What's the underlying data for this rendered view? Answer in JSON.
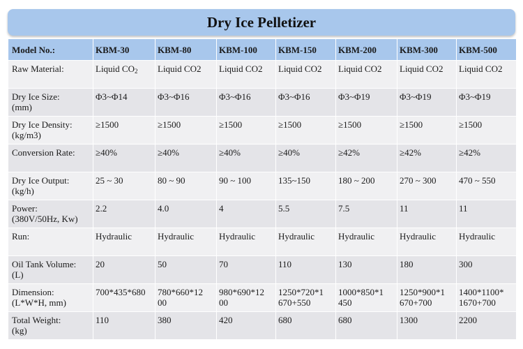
{
  "title": "Dry Ice Pelletizer",
  "table": {
    "header": {
      "label": "Model No.:",
      "models": [
        "KBM-30",
        "KBM-80",
        "KBM-100",
        "KBM-150",
        "KBM-200",
        "KBM-300",
        "KBM-500"
      ]
    },
    "rows": [
      {
        "label": "Raw Material:",
        "values": [
          "Liquid CO",
          "Liquid CO2",
          "Liquid CO2",
          "Liquid CO2",
          "Liquid CO2",
          "Liquid CO2",
          "Liquid CO2"
        ],
        "first_subscript": "2"
      },
      {
        "label": "Dry Ice Size:\n(mm)",
        "values": [
          "Φ3~Φ14",
          "Φ3~Φ16",
          "Φ3~Φ16",
          "Φ3~Φ16",
          "Φ3~Φ19",
          "Φ3~Φ19",
          "Φ3~Φ19"
        ]
      },
      {
        "label": "Dry Ice Density:\n(kg/m3)",
        "values": [
          "≥1500",
          "≥1500",
          "≥1500",
          "≥1500",
          "≥1500",
          "≥1500",
          "≥1500"
        ]
      },
      {
        "label": "Conversion Rate:",
        "values": [
          "≥40%",
          "≥40%",
          "≥40%",
          "≥40%",
          "≥42%",
          "≥42%",
          "≥42%"
        ]
      },
      {
        "label": "Dry Ice Output:\n(kg/h)",
        "values": [
          "25 ~ 30",
          "80 ~ 90",
          "90 ~ 100",
          "135~150",
          "180 ~ 200",
          "270 ~ 300",
          "470 ~ 550"
        ]
      },
      {
        "label": "Power:\n(380V/50Hz, Kw)",
        "values": [
          "2.2",
          "4.0",
          "4",
          "5.5",
          "7.5",
          "11",
          "11"
        ]
      },
      {
        "label": "Run:",
        "values": [
          "Hydraulic",
          "Hydraulic",
          "Hydraulic",
          "Hydraulic",
          "Hydraulic",
          "Hydraulic",
          "Hydraulic"
        ]
      },
      {
        "label": "Oil Tank Volume:\n(L)",
        "values": [
          "20",
          "50",
          "70",
          "110",
          "130",
          "180",
          "300"
        ]
      },
      {
        "label": "Dimension:\n(L*W*H, mm)",
        "values": [
          "700*435*680",
          "780*660*12\n00",
          "980*690*12\n00",
          "1250*720*1\n670+550",
          "1000*850*1\n450",
          "1250*900*1\n670+700",
          "1400*1100*\n1670+700"
        ]
      },
      {
        "label": "Total Weight:\n(kg)",
        "values": [
          "110",
          "380",
          "420",
          "680",
          "680",
          "1300",
          "2200"
        ]
      }
    ]
  }
}
